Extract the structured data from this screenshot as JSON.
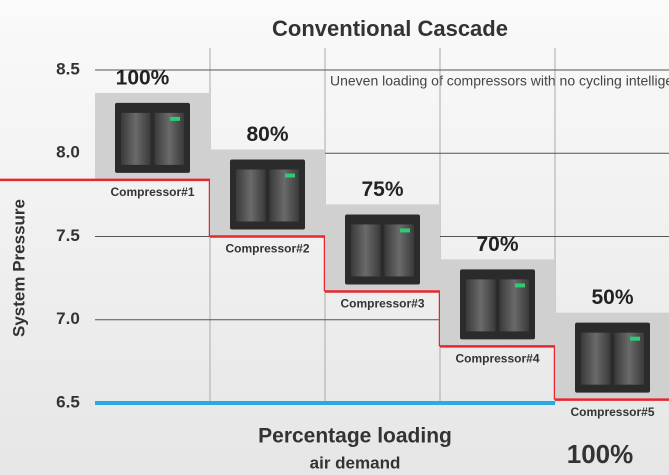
{
  "chart_data": {
    "type": "cascade",
    "title": "Conventional Cascade",
    "y_label": "System Pressure",
    "x_label": "Percentage loading",
    "x_sublabel": "air demand",
    "total_label": "100%",
    "annotation": "Uneven loading of compressors with no cycling intelligence",
    "categories": [
      "Compressor#1",
      "Compressor#2",
      "Compressor#3",
      "Compressor#4",
      "Compressor#5"
    ],
    "load_labels": [
      "100%",
      "80%",
      "75%",
      "70%",
      "50%"
    ],
    "values": [
      7.84,
      7.5,
      7.17,
      6.84,
      6.52
    ],
    "color": "#e8272c",
    "baseline_color": "#29abe2",
    "ylim": [
      6.5,
      8.5
    ],
    "yticks": [
      8.5,
      {
        "value": 8,
        "label": "8.0"
      },
      7.5,
      {
        "value": 7,
        "label": "7.0"
      },
      6.5
    ],
    "grid": true
  }
}
